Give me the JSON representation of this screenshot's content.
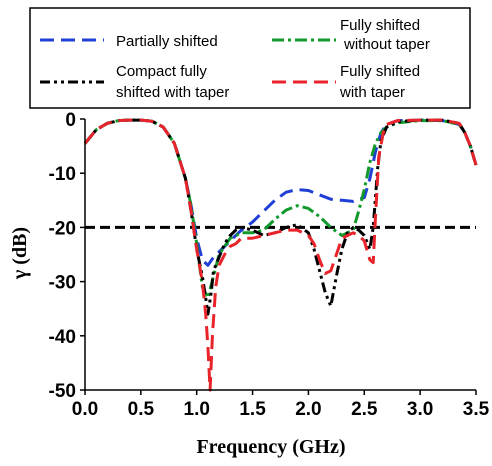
{
  "chart_data": {
    "type": "line",
    "xlabel": "Frequency (GHz)",
    "ylabel": "γ (dB)",
    "xlim": [
      0,
      3.5
    ],
    "ylim": [
      -50,
      0
    ],
    "xticks": [
      "0.0",
      "0.5",
      "1.0",
      "1.5",
      "2.0",
      "2.5",
      "3.0",
      "3.5"
    ],
    "yticks": [
      "0",
      "-10",
      "-20",
      "-30",
      "-40",
      "-50"
    ],
    "grid": false,
    "legend": {
      "placement": "top",
      "columns": 2
    },
    "reference_line": {
      "y": -20,
      "color": "#000000",
      "style": "dashed"
    },
    "series": [
      {
        "name": "Partially shifted",
        "color": "#1f3fd6",
        "style": "dashed",
        "x": [
          0.0,
          0.1,
          0.2,
          0.3,
          0.4,
          0.5,
          0.6,
          0.7,
          0.8,
          0.9,
          0.95,
          1.0,
          1.05,
          1.1,
          1.15,
          1.2,
          1.3,
          1.4,
          1.5,
          1.6,
          1.7,
          1.8,
          1.9,
          2.0,
          2.1,
          2.2,
          2.3,
          2.4,
          2.5,
          2.55,
          2.6,
          2.65,
          2.7,
          2.8,
          3.0,
          3.2,
          3.35,
          3.4,
          3.45,
          3.5
        ],
        "y": [
          -4.5,
          -2.0,
          -0.8,
          -0.3,
          -0.2,
          -0.2,
          -0.4,
          -1.5,
          -4.5,
          -11.0,
          -16.0,
          -22.0,
          -26.0,
          -27.0,
          -25.5,
          -24.5,
          -22.5,
          -20.5,
          -19.0,
          -17.0,
          -15.0,
          -13.5,
          -13.0,
          -13.2,
          -14.0,
          -14.8,
          -15.0,
          -15.2,
          -14.5,
          -11.0,
          -6.0,
          -2.5,
          -1.0,
          -0.3,
          -0.2,
          -0.3,
          -1.0,
          -2.5,
          -5.0,
          -8.5
        ]
      },
      {
        "name": "Fully shifted without taper",
        "color": "#119a2b",
        "style": "dash-dot",
        "x": [
          0.0,
          0.1,
          0.2,
          0.3,
          0.4,
          0.5,
          0.6,
          0.7,
          0.8,
          0.9,
          0.95,
          1.0,
          1.05,
          1.1,
          1.15,
          1.2,
          1.3,
          1.4,
          1.5,
          1.6,
          1.7,
          1.8,
          1.9,
          2.0,
          2.1,
          2.2,
          2.3,
          2.4,
          2.45,
          2.5,
          2.55,
          2.6,
          2.65,
          2.7,
          2.8,
          3.0,
          3.2,
          3.35,
          3.4,
          3.45,
          3.5
        ],
        "y": [
          -4.5,
          -2.0,
          -0.8,
          -0.3,
          -0.2,
          -0.2,
          -0.4,
          -1.5,
          -4.5,
          -11.0,
          -16.0,
          -23.0,
          -31.0,
          -33.0,
          -29.0,
          -25.0,
          -22.0,
          -21.0,
          -21.0,
          -20.5,
          -18.5,
          -16.8,
          -16.0,
          -16.5,
          -18.0,
          -20.0,
          -21.5,
          -20.5,
          -17.0,
          -13.0,
          -8.0,
          -4.5,
          -2.5,
          -1.5,
          -0.7,
          -0.3,
          -0.3,
          -1.0,
          -2.5,
          -5.0,
          -8.5
        ]
      },
      {
        "name": "Compact fully shifted with taper",
        "color": "#000000",
        "style": "dash-dot-dot",
        "x": [
          0.0,
          0.1,
          0.2,
          0.3,
          0.4,
          0.5,
          0.6,
          0.7,
          0.8,
          0.9,
          0.95,
          1.0,
          1.05,
          1.08,
          1.1,
          1.13,
          1.15,
          1.2,
          1.25,
          1.3,
          1.35,
          1.4,
          1.5,
          1.6,
          1.7,
          1.8,
          1.9,
          2.0,
          2.05,
          2.1,
          2.15,
          2.2,
          2.25,
          2.3,
          2.35,
          2.4,
          2.45,
          2.5,
          2.55,
          2.58,
          2.62,
          2.65,
          2.7,
          2.8,
          3.0,
          3.2,
          3.35,
          3.4,
          3.45,
          3.5
        ],
        "y": [
          -4.5,
          -2.0,
          -0.8,
          -0.3,
          -0.2,
          -0.2,
          -0.4,
          -1.5,
          -4.5,
          -11.0,
          -17.0,
          -24.0,
          -29.0,
          -33.0,
          -36.0,
          -32.0,
          -28.0,
          -25.5,
          -23.0,
          -21.5,
          -20.5,
          -20.0,
          -20.5,
          -21.5,
          -21.0,
          -20.0,
          -19.5,
          -21.0,
          -24.0,
          -28.0,
          -32.0,
          -34.5,
          -29.0,
          -24.0,
          -21.0,
          -20.0,
          -20.5,
          -21.5,
          -24.0,
          -20.0,
          -9.0,
          -4.0,
          -1.5,
          -0.5,
          -0.2,
          -0.2,
          -0.8,
          -2.5,
          -5.0,
          -8.5
        ]
      },
      {
        "name": "Fully shifted with taper",
        "color": "#e8242a",
        "style": "dashed",
        "x": [
          0.0,
          0.1,
          0.2,
          0.3,
          0.4,
          0.5,
          0.6,
          0.7,
          0.8,
          0.9,
          0.95,
          1.0,
          1.05,
          1.08,
          1.1,
          1.12,
          1.14,
          1.17,
          1.2,
          1.25,
          1.3,
          1.35,
          1.4,
          1.5,
          1.6,
          1.7,
          1.8,
          1.9,
          2.0,
          2.05,
          2.1,
          2.15,
          2.2,
          2.25,
          2.3,
          2.35,
          2.4,
          2.45,
          2.5,
          2.55,
          2.58,
          2.6,
          2.63,
          2.67,
          2.7,
          2.8,
          3.0,
          3.2,
          3.35,
          3.4,
          3.45,
          3.5
        ],
        "y": [
          -4.5,
          -2.0,
          -0.8,
          -0.3,
          -0.2,
          -0.2,
          -0.4,
          -1.5,
          -4.5,
          -11.0,
          -17.0,
          -24.0,
          -30.0,
          -36.0,
          -42.0,
          -50.0,
          -40.0,
          -31.0,
          -27.0,
          -25.0,
          -23.5,
          -23.0,
          -22.0,
          -22.0,
          -21.5,
          -21.0,
          -20.5,
          -20.5,
          -21.5,
          -23.0,
          -26.0,
          -28.5,
          -28.0,
          -25.0,
          -22.0,
          -21.5,
          -21.0,
          -21.5,
          -22.5,
          -26.0,
          -26.5,
          -18.0,
          -7.0,
          -2.5,
          -1.0,
          -0.3,
          -0.2,
          -0.2,
          -0.8,
          -2.5,
          -5.0,
          -8.5
        ]
      }
    ]
  }
}
